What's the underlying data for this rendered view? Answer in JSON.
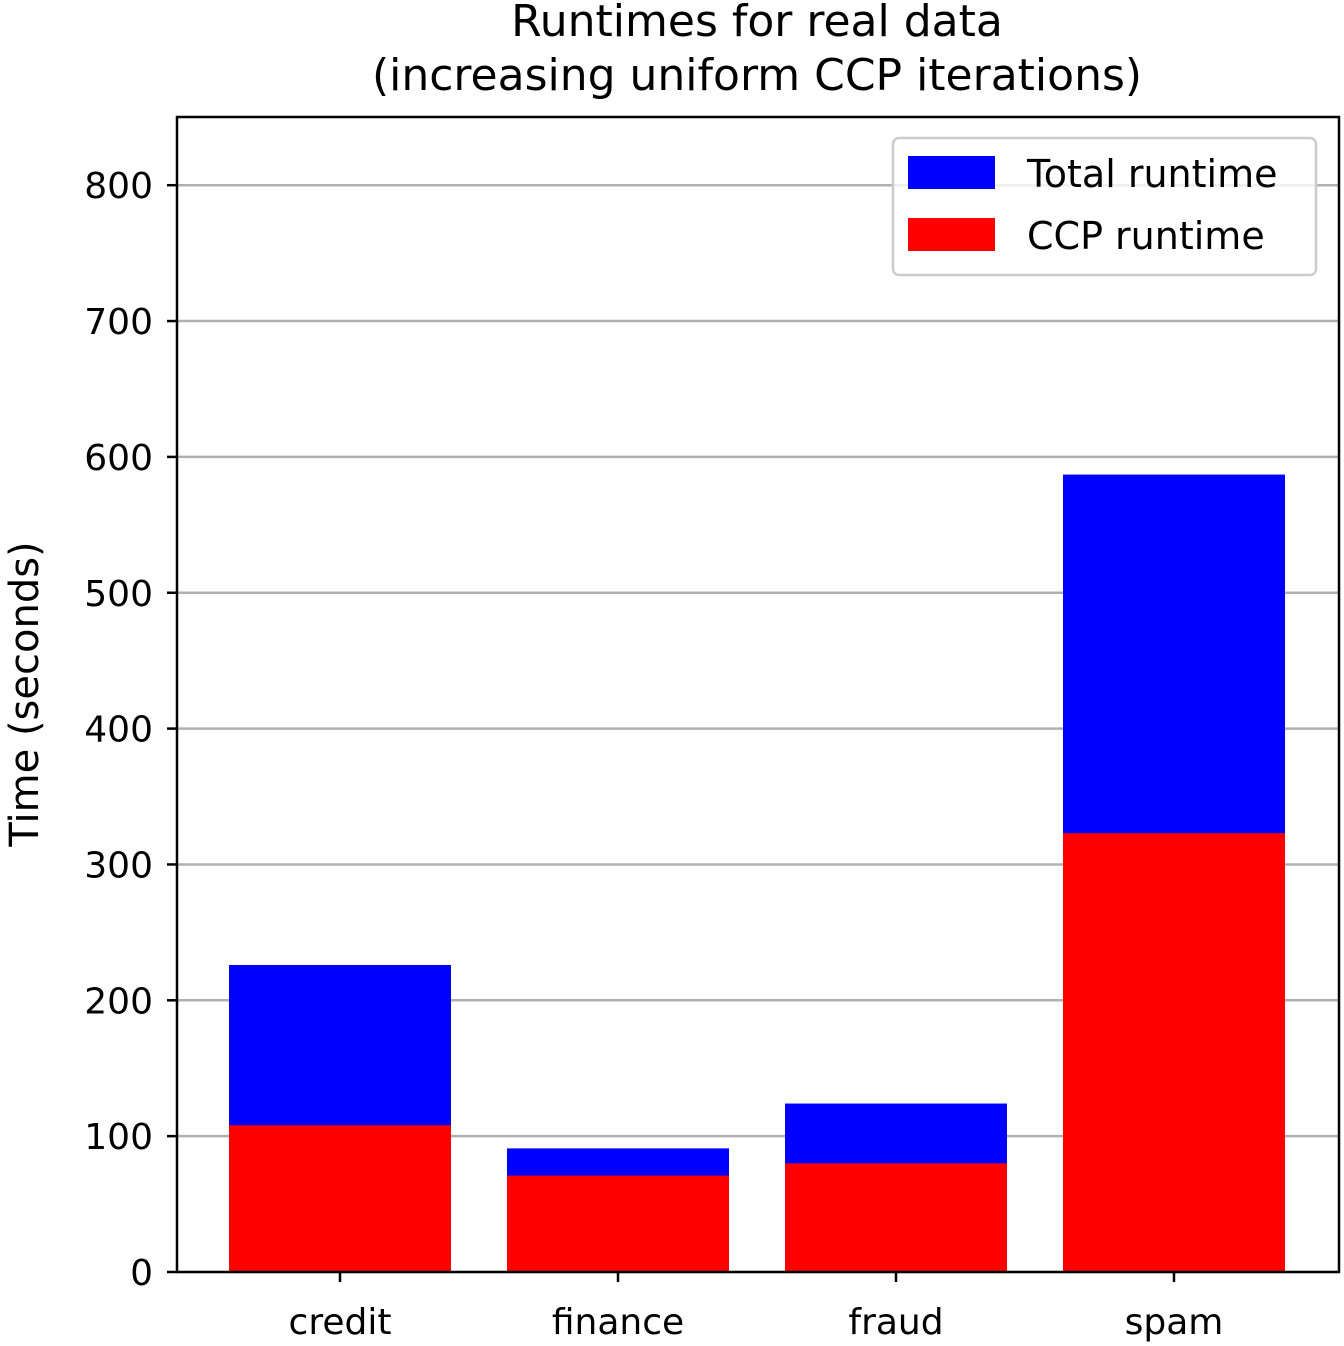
{
  "chart_data": {
    "type": "bar",
    "stacked": "overlay",
    "title": "Runtimes for real data",
    "subtitle": "(increasing uniform CCP iterations)",
    "xlabel": "",
    "ylabel": "Time (seconds)",
    "ylim": [
      0,
      850
    ],
    "yticks": [
      0,
      100,
      200,
      300,
      400,
      500,
      600,
      700,
      800
    ],
    "grid": true,
    "legend_position": "top-right",
    "categories": [
      "credit",
      "finance",
      "fraud",
      "spam"
    ],
    "series": [
      {
        "name": "Total runtime",
        "color": "#0000ff",
        "values": [
          226,
          91,
          124,
          587
        ]
      },
      {
        "name": "CCP runtime",
        "color": "#ff0000",
        "values": [
          108,
          71,
          80,
          323
        ]
      }
    ]
  }
}
